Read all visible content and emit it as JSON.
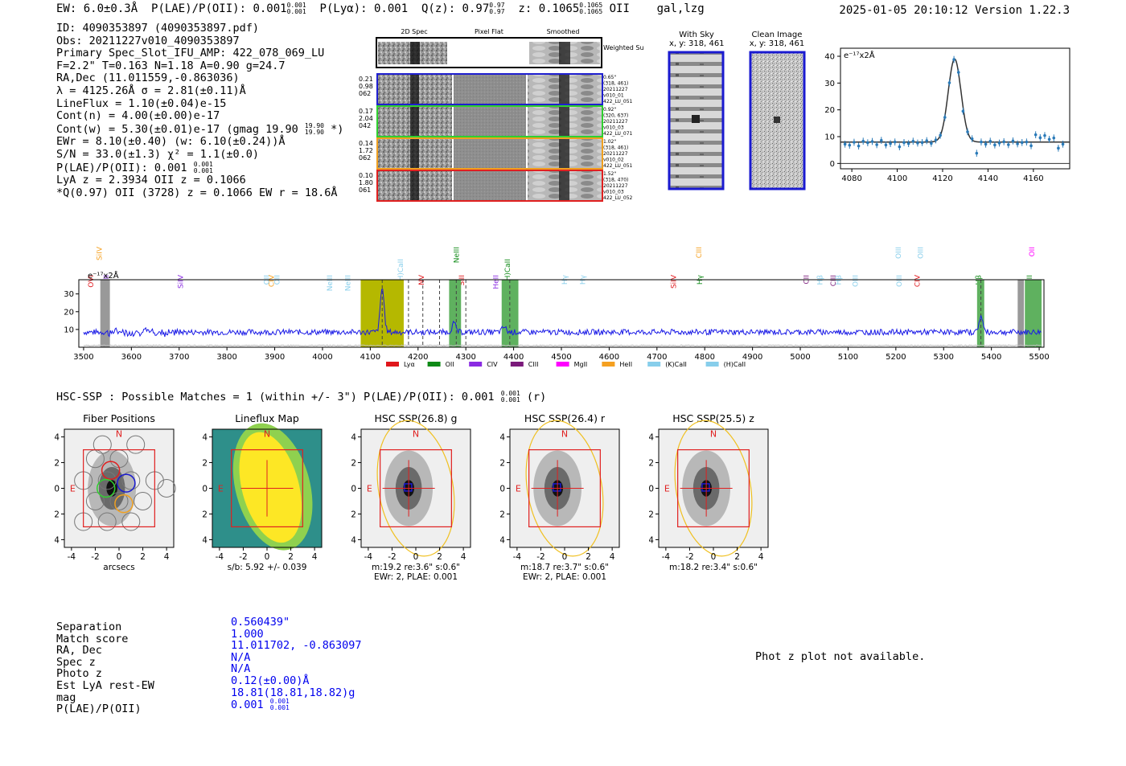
{
  "header": {
    "ew": "EW: 6.0±0.3Å",
    "plae": "P(LAE)/P(OII): 0.001",
    "plae_hi": "0.001",
    "plae_lo": "0.001",
    "plya": "P(Lyα): 0.001",
    "qz": "Q(z): 0.97",
    "qz_hi": "0.97",
    "qz_lo": "0.97",
    "z": "z: 0.1065",
    "z_hi": "0.1065",
    "z_lo": "0.1065",
    "line": "OII",
    "cls": "gal,lzg",
    "timestamp": "2025-01-05 20:10:12  Version 1.22.3"
  },
  "info": {
    "id": "ID: 4090353897 (4090353897.pdf)",
    "obs": "Obs: 20211227v010_4090353897",
    "spec_slot": "Primary Spec_Slot_IFU_AMP: 422_078_069_LU",
    "fiber": "F=2.2\"  T=0.163  N=1.18  A=0.90  g=24.7",
    "radec": "RA,Dec (11.011559,-0.863036)",
    "lambda": "λ = 4125.26Å  σ = 2.81(±0.11)Å",
    "lineflux": "LineFlux = 1.10(±0.04)e-15",
    "contn": "Cont(n) = 4.00(±0.00)e-17",
    "contw": "Cont(w) = 5.30(±0.01)e-17 (gmag 19.90",
    "contw_hi": "19.90",
    "contw_lo": "19.90",
    "contw_end": " *)",
    "ewr": "EWr = 8.10(±0.40) (w: 6.10(±0.24))Å",
    "sn": "S/N = 33.0(±1.3)  χ² = 1.1(±0.0)",
    "plae": "P(LAE)/P(OII): 0.001",
    "plae_hi": "0.001",
    "plae_lo": "0.001",
    "lya_z": "LyA z = 2.3934  OII z = 0.1066",
    "q_line": "*Q(0.97) OII (3728) z = 0.1066  EW r = 18.6Å"
  },
  "cutouts": {
    "col_titles": [
      "2D Spec",
      "Pixel Flat",
      "Smoothed"
    ],
    "weighted": "Weighted Sum",
    "rows": [
      {
        "left": [
          "0.21",
          "0.98",
          "062"
        ],
        "right": [
          "0.65\"",
          "(318, 461)",
          "20211227",
          "v010_01",
          "422_LU_051"
        ],
        "color": "#1f1fd0"
      },
      {
        "left": [
          "0.17",
          "2.04",
          "042"
        ],
        "right": [
          "0.92\"",
          "(320, 637)",
          "20211227",
          "v010_03",
          "422_LU_071"
        ],
        "color": "#2fd02f"
      },
      {
        "left": [
          "0.14",
          "1.72",
          "062"
        ],
        "right": [
          "1.02\"",
          "(318, 461)",
          "20211227",
          "v010_02",
          "422_LU_051"
        ],
        "color": "#f0a020"
      },
      {
        "left": [
          "0.10",
          "1.80",
          "061"
        ],
        "right": [
          "1.52\"",
          "(318, 470)",
          "20211227",
          "v010_03",
          "422_LU_052"
        ],
        "color": "#e02020"
      }
    ],
    "with_sky": "With Sky",
    "with_sky_xy": "x, y: 318, 461",
    "clean": "Clean Image",
    "clean_xy": "x, y: 318, 461"
  },
  "fit_plot": {
    "unit_label": "e⁻¹⁷x2Å",
    "x_ticks": [
      "4080",
      "4100",
      "4120",
      "4140",
      "4160"
    ],
    "y_ticks": [
      "0",
      "10",
      "20",
      "30",
      "40"
    ],
    "xlim": [
      4075,
      4176
    ],
    "ylim": [
      -2,
      43
    ]
  },
  "spectrum": {
    "unit_label": "e⁻¹⁷x2Å",
    "x_ticks": [
      "3500",
      "3600",
      "3700",
      "3800",
      "3900",
      "4000",
      "4100",
      "4200",
      "4300",
      "4400",
      "4500",
      "4600",
      "4700",
      "4800",
      "4900",
      "5000",
      "5100",
      "5200",
      "5300",
      "5400",
      "5500"
    ],
    "y_ticks": [
      "10",
      "20",
      "30"
    ],
    "xlim": [
      3490,
      5510
    ],
    "ylim": [
      0,
      38
    ],
    "legend": [
      {
        "label": "Lyα",
        "color": "#e0161b"
      },
      {
        "label": "OII",
        "color": "#0e8a16"
      },
      {
        "label": "CIV",
        "color": "#8a2be2"
      },
      {
        "label": "CIII",
        "color": "#7b1a7b"
      },
      {
        "label": "MgII",
        "color": "#ff00ff"
      },
      {
        "label": "HeII",
        "color": "#f5a020"
      },
      {
        "label": "(K)CaII",
        "color": "#87ceeb"
      },
      {
        "label": "(H)CaII",
        "color": "#87ceeb"
      }
    ],
    "line_labels": [
      {
        "text": "SiIV",
        "color": "#f5a020",
        "row": 0,
        "w": 3538
      },
      {
        "text": "OVI",
        "color": "#e0161b",
        "row": 2,
        "w": 3520
      },
      {
        "text": "HeII",
        "color": "#8a2be2",
        "row": 2,
        "w": 3552
      },
      {
        "text": "SiIV",
        "color": "#8a2be2",
        "row": 2,
        "w": 3708
      },
      {
        "text": "OII",
        "color": "#87ceeb",
        "row": 2,
        "w": 3888
      },
      {
        "text": "CIV",
        "color": "#f5a020",
        "row": 2,
        "w": 3898
      },
      {
        "text": "OII",
        "color": "#87ceeb",
        "row": 2,
        "w": 3910
      },
      {
        "text": "NeIII",
        "color": "#87ceeb",
        "row": 2,
        "w": 4020
      },
      {
        "text": "NeIII",
        "color": "#87ceeb",
        "row": 2,
        "w": 4058
      },
      {
        "text": "(H)CaII",
        "color": "#87ceeb",
        "row": 1,
        "w": 4168
      },
      {
        "text": "NV",
        "color": "#e0161b",
        "row": 2,
        "w": 4212
      },
      {
        "text": "NeIII",
        "color": "#0e8a16",
        "row": 0,
        "w": 4285
      },
      {
        "text": "SiII",
        "color": "#e0161b",
        "row": 2,
        "w": 4296
      },
      {
        "text": "HeII",
        "color": "#8a2be2",
        "row": 2,
        "w": 4368
      },
      {
        "text": "(H)CaII",
        "color": "#0e8a16",
        "row": 1,
        "w": 4392
      },
      {
        "text": "Hγ",
        "color": "#87ceeb",
        "row": 2,
        "w": 4512
      },
      {
        "text": "Hγ",
        "color": "#87ceeb",
        "row": 2,
        "w": 4550
      },
      {
        "text": "SiIV",
        "color": "#e0161b",
        "row": 2,
        "w": 4740
      },
      {
        "text": "CIII",
        "color": "#f5a020",
        "row": 0,
        "w": 4793
      },
      {
        "text": "Hγ",
        "color": "#0e8a16",
        "row": 2,
        "w": 4795
      },
      {
        "text": "CII",
        "color": "#7b1a7b",
        "row": 2,
        "w": 5018
      },
      {
        "text": "Hβ",
        "color": "#87ceeb",
        "row": 2,
        "w": 5046
      },
      {
        "text": "CIII",
        "color": "#7b1a7b",
        "row": 2,
        "w": 5074
      },
      {
        "text": "Hβ",
        "color": "#87ceeb",
        "row": 2,
        "w": 5085
      },
      {
        "text": "OIII",
        "color": "#87ceeb",
        "row": 2,
        "w": 5120
      },
      {
        "text": "OIII",
        "color": "#87ceeb",
        "row": 0,
        "w": 5210
      },
      {
        "text": "OIII",
        "color": "#87ceeb",
        "row": 2,
        "w": 5212
      },
      {
        "text": "OIII",
        "color": "#87ceeb",
        "row": 0,
        "w": 5257
      },
      {
        "text": "CIV",
        "color": "#e0161b",
        "row": 2,
        "w": 5250
      },
      {
        "text": "Hβ",
        "color": "#0e8a16",
        "row": 2,
        "w": 5378
      },
      {
        "text": "OII",
        "color": "#ff00ff",
        "row": 0,
        "w": 5490
      },
      {
        "text": "OIII",
        "color": "#0e8a16",
        "row": 2,
        "w": 5485
      }
    ]
  },
  "hsc": {
    "summary": "HSC-SSP : Possible Matches = 1 (within +/- 3\")  P(LAE)/P(OII): 0.001",
    "summary_hi": "0.001",
    "summary_lo": "0.001",
    "summary_end": " (r)",
    "panels": [
      {
        "title": "Fiber Positions",
        "caption1": "arcsecs",
        "caption2": ""
      },
      {
        "title": "Lineflux Map",
        "caption1": "s/b: 5.92 +/- 0.039",
        "caption2": ""
      },
      {
        "title": "HSC SSP(26.8) g",
        "caption1": "m:19.2  re:3.6\"  s:0.6\"",
        "caption2": "EWr: 2, PLAE: 0.001"
      },
      {
        "title": "HSC SSP(26.4) r",
        "caption1": "m:18.7  re:3.7\"  s:0.6\"",
        "caption2": "EWr: 2, PLAE: 0.001"
      },
      {
        "title": "HSC SSP(25.5) z",
        "caption1": "m:18.2  re:3.4\"  s:0.6\"",
        "caption2": ""
      }
    ],
    "axis_ticks": [
      "-4",
      "-2",
      "0",
      "2",
      "4"
    ],
    "n_label": "N",
    "e_label": "E"
  },
  "match_table": {
    "labels": [
      "Separation",
      "Match score",
      "RA, Dec",
      "Spec z",
      "Photo z",
      "Est LyA rest-EW",
      "mag",
      "P(LAE)/P(OII)"
    ],
    "values": [
      "0.560439\"",
      "1.000",
      "11.011702, -0.863097",
      "N/A",
      "N/A",
      "0.12(±0.00)Å",
      "18.81(18.81,18.82)g",
      "0.001"
    ],
    "plae_hi": "0.001",
    "plae_lo": "0.001"
  },
  "photz_message": "Phot z plot not available.",
  "chart_data": [
    {
      "type": "scatter",
      "title": "",
      "ylabel": "e⁻¹⁷x2Å",
      "xlim": [
        4075,
        4176
      ],
      "ylim": [
        -2,
        43
      ],
      "x": [
        4077,
        4079,
        4081,
        4083,
        4085,
        4087,
        4089,
        4091,
        4093,
        4095,
        4097,
        4099,
        4101,
        4103,
        4105,
        4107,
        4109,
        4111,
        4113,
        4115,
        4117,
        4119,
        4121,
        4123,
        4125,
        4127,
        4129,
        4131,
        4133,
        4135,
        4137,
        4139,
        4141,
        4143,
        4145,
        4147,
        4149,
        4151,
        4153,
        4155,
        4157,
        4159,
        4161,
        4163,
        4165,
        4167,
        4169,
        4171,
        4173
      ],
      "y": [
        7.2,
        6.8,
        7.9,
        6.5,
        8.3,
        7.7,
        8.2,
        7.0,
        8.6,
        6.9,
        7.4,
        8.0,
        6.2,
        7.8,
        7.4,
        8.3,
        7.6,
        7.8,
        8.5,
        7.5,
        8.8,
        10.5,
        17.2,
        30.1,
        38.8,
        34.0,
        19.5,
        11.8,
        9.2,
        3.8,
        8.0,
        7.2,
        8.3,
        6.9,
        7.6,
        8.1,
        7.0,
        8.4,
        7.3,
        7.8,
        8.0,
        6.6,
        10.7,
        9.6,
        10.4,
        9.0,
        9.5,
        5.7,
        7.2
      ],
      "model": {
        "center": 4125.3,
        "sigma": 2.81,
        "amp": 31.0,
        "continuum": 8.0
      }
    },
    {
      "type": "line",
      "title": "",
      "ylabel": "e⁻¹⁷x2Å",
      "xlim": [
        3490,
        5510
      ],
      "ylim": [
        0,
        38
      ],
      "continuum": 8.5,
      "emission": [
        {
          "x": 4125,
          "peak": 33.5
        },
        {
          "x": 4275,
          "peak": 13.5
        },
        {
          "x": 4380,
          "peak": 11.5
        },
        {
          "x": 5378,
          "peak": 17.5
        }
      ],
      "bands": [
        {
          "x0": 3535,
          "x1": 3555,
          "color": "#999999"
        },
        {
          "x0": 4080,
          "x1": 4170,
          "color": "#b5b800"
        },
        {
          "x0": 4265,
          "x1": 4290,
          "color": "#5fb15f"
        },
        {
          "x0": 4375,
          "x1": 4410,
          "color": "#5fb15f"
        },
        {
          "x0": 5370,
          "x1": 5385,
          "color": "#5fb15f"
        },
        {
          "x0": 5455,
          "x1": 5468,
          "color": "#999999"
        },
        {
          "x0": 5470,
          "x1": 5505,
          "color": "#5fb15f"
        }
      ],
      "dashed": [
        4125,
        4180,
        4210,
        4245,
        4280,
        4300,
        4392,
        5378
      ]
    }
  ]
}
